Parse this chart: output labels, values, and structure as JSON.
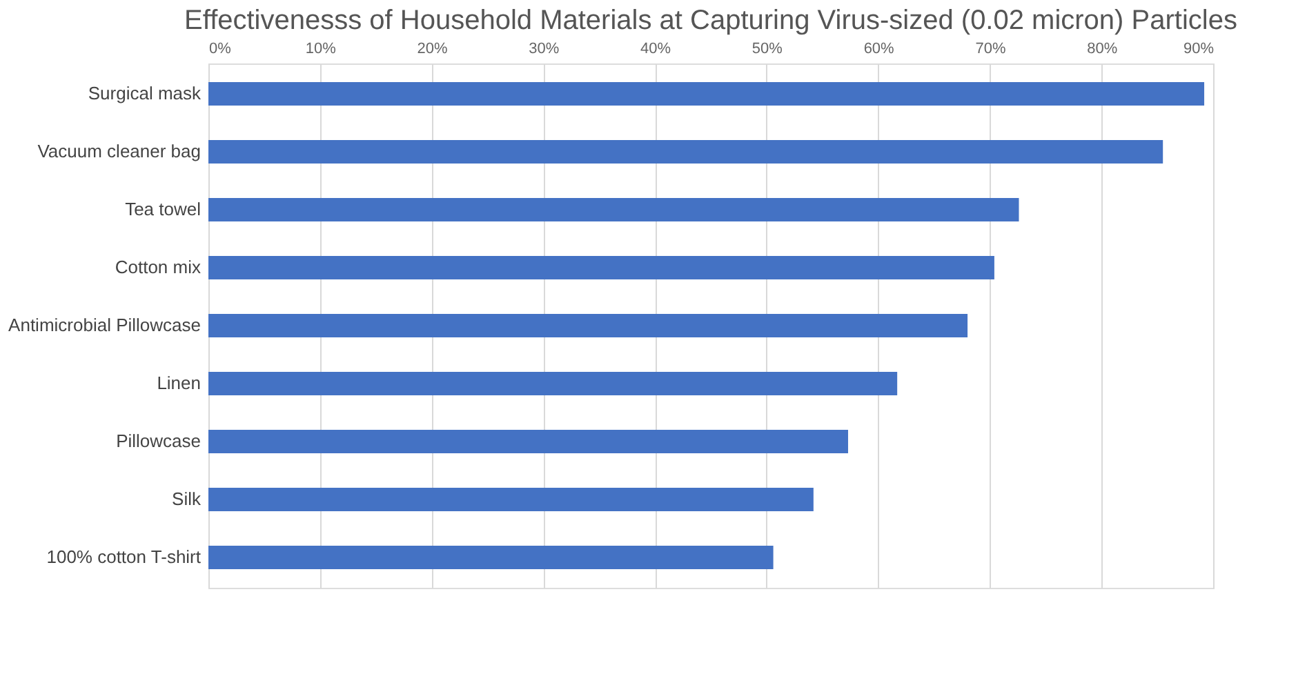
{
  "chart_data": {
    "type": "bar",
    "orientation": "horizontal",
    "title": "Effectivenesss of Household Materials at Capturing Virus-sized (0.02 micron) Particles",
    "categories": [
      "Surgical mask",
      "Vacuum cleaner bag",
      "Tea towel",
      "Cotton mix",
      "Antimicrobial Pillowcase",
      "Linen",
      "Pillowcase",
      "Silk",
      "100% cotton T-shirt"
    ],
    "values": [
      89.2,
      85.5,
      72.6,
      70.4,
      68.0,
      61.7,
      57.3,
      54.2,
      50.6
    ],
    "color": "#4472c4",
    "xlim": [
      0,
      90
    ],
    "xticks": [
      {
        "value": 0,
        "label": "0%"
      },
      {
        "value": 10,
        "label": "10%"
      },
      {
        "value": 20,
        "label": "20%"
      },
      {
        "value": 30,
        "label": "30%"
      },
      {
        "value": 40,
        "label": "40%"
      },
      {
        "value": 50,
        "label": "50%"
      },
      {
        "value": 60,
        "label": "60%"
      },
      {
        "value": 70,
        "label": "70%"
      },
      {
        "value": 80,
        "label": "80%"
      },
      {
        "value": 90,
        "label": "90%"
      }
    ],
    "grid": "x"
  }
}
